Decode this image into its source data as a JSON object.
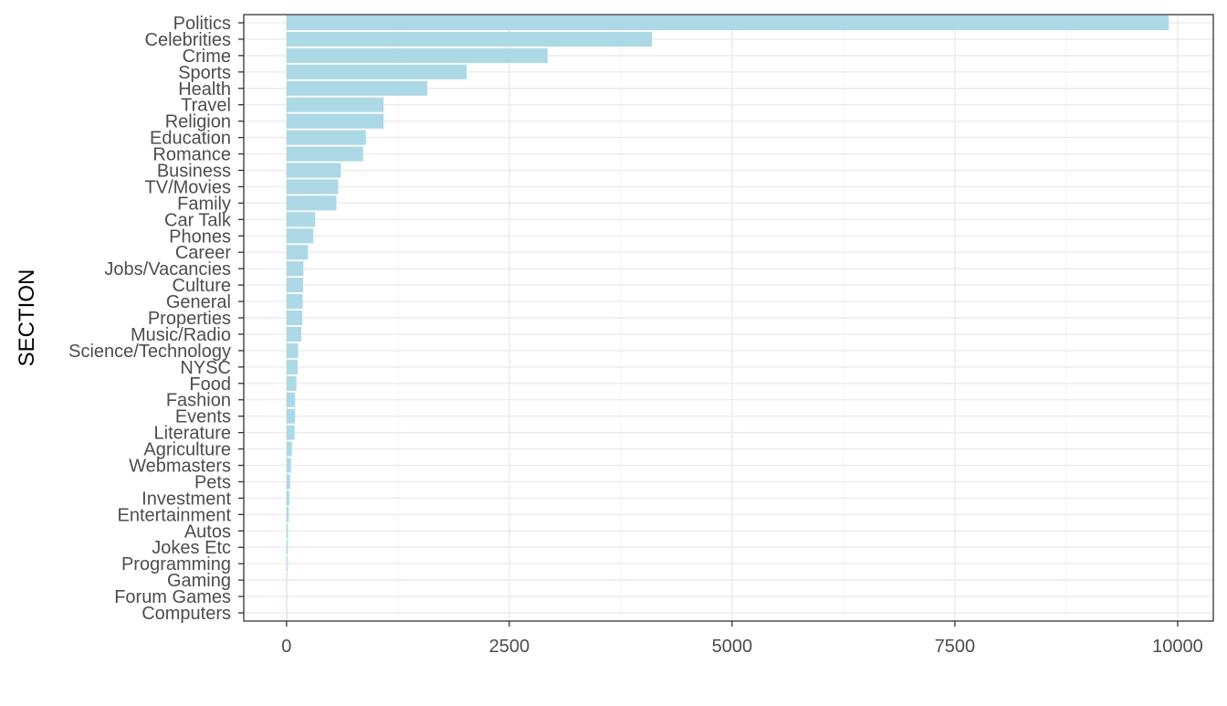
{
  "chart_data": {
    "type": "bar",
    "orientation": "horizontal",
    "title": "",
    "xlabel": "",
    "ylabel": "SECTION",
    "xlim": [
      -480,
      10400
    ],
    "x_ticks": [
      0,
      2500,
      5000,
      7500,
      10000
    ],
    "x_tick_labels": [
      "0",
      "2500",
      "5000",
      "7500",
      "10000"
    ],
    "grid": true,
    "legend": "none",
    "bar_color": "#ADD8E6",
    "categories": [
      "Politics",
      "Celebrities",
      "Crime",
      "Sports",
      "Health",
      "Travel",
      "Religion",
      "Education",
      "Romance",
      "Business",
      "TV/Movies",
      "Family",
      "Car Talk",
      "Phones",
      "Career",
      "Jobs/Vacancies",
      "Culture",
      "General",
      "Properties",
      "Music/Radio",
      "Science/Technology",
      "NYSC",
      "Food",
      "Fashion",
      "Events",
      "Literature",
      "Agriculture",
      "Webmasters",
      "Pets",
      "Investment",
      "Entertainment",
      "Autos",
      "Jokes Etc",
      "Programming",
      "Gaming",
      "Forum Games",
      "Computers"
    ],
    "values": [
      9900,
      4100,
      2930,
      2020,
      1580,
      1090,
      1090,
      890,
      860,
      610,
      580,
      560,
      320,
      300,
      240,
      190,
      185,
      180,
      175,
      165,
      130,
      125,
      110,
      95,
      95,
      90,
      60,
      50,
      40,
      30,
      25,
      15,
      12,
      10,
      5,
      3,
      2
    ]
  }
}
